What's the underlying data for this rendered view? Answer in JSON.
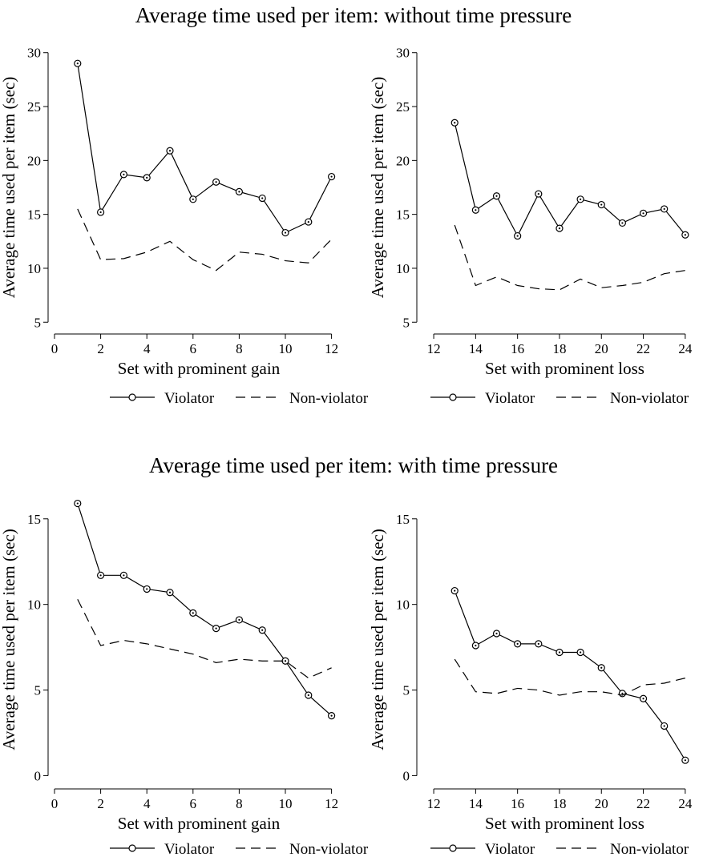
{
  "sections": [
    {
      "title": "Average time used per item: without time pressure"
    },
    {
      "title": "Average time used per item: with time pressure"
    }
  ],
  "chart_data": [
    {
      "type": "line",
      "xlabel": "Set with prominent gain",
      "ylabel": "Average time used per item (sec)",
      "xlim": [
        0,
        12.5
      ],
      "ylim": [
        4.5,
        30.5
      ],
      "xticks": [
        0,
        2,
        4,
        6,
        8,
        10,
        12
      ],
      "yticks": [
        5,
        10,
        15,
        20,
        25,
        30
      ],
      "x": [
        1,
        2,
        3,
        4,
        5,
        6,
        7,
        8,
        9,
        10,
        11,
        12
      ],
      "series": [
        {
          "name": "Violator",
          "style": "solid-circle",
          "values": [
            29.0,
            15.2,
            18.7,
            18.4,
            20.9,
            16.4,
            18.0,
            17.1,
            16.5,
            13.3,
            14.3,
            18.5
          ]
        },
        {
          "name": "Non-violator",
          "style": "dashed",
          "values": [
            15.5,
            10.8,
            10.9,
            11.5,
            12.5,
            10.8,
            9.8,
            11.5,
            11.3,
            10.7,
            10.5,
            12.7
          ]
        }
      ],
      "legend": "bottom",
      "grid": false
    },
    {
      "type": "line",
      "xlabel": "Set with prominent loss",
      "ylabel": "Average time used per item (sec)",
      "xlim": [
        11.5,
        25
      ],
      "ylim": [
        4.5,
        30.5
      ],
      "xticks": [
        12,
        14,
        16,
        18,
        20,
        22,
        24
      ],
      "yticks": [
        5,
        10,
        15,
        20,
        25,
        30
      ],
      "x": [
        13,
        14,
        15,
        16,
        17,
        18,
        19,
        20,
        21,
        22,
        23,
        24
      ],
      "series": [
        {
          "name": "Violator",
          "style": "solid-circle",
          "values": [
            23.5,
            15.4,
            16.7,
            13.0,
            16.9,
            13.7,
            16.4,
            15.9,
            14.2,
            15.1,
            15.5,
            13.1
          ]
        },
        {
          "name": "Non-violator",
          "style": "dashed",
          "values": [
            14.0,
            8.4,
            9.2,
            8.4,
            8.1,
            8.0,
            9.0,
            8.2,
            8.4,
            8.7,
            9.5,
            9.8
          ]
        }
      ],
      "legend": "bottom",
      "grid": false
    },
    {
      "type": "line",
      "xlabel": "Set with prominent gain",
      "ylabel": "Average time used per item (sec)",
      "xlim": [
        0,
        12.5
      ],
      "ylim": [
        -0.4,
        16.3
      ],
      "xticks": [
        0,
        2,
        4,
        6,
        8,
        10,
        12
      ],
      "yticks": [
        0,
        5,
        10,
        15
      ],
      "x": [
        1,
        2,
        3,
        4,
        5,
        6,
        7,
        8,
        9,
        10,
        11,
        12
      ],
      "series": [
        {
          "name": "Violator",
          "style": "solid-circle",
          "values": [
            15.9,
            11.7,
            11.7,
            10.9,
            10.7,
            9.5,
            8.6,
            9.1,
            8.5,
            6.7,
            4.7,
            3.5
          ]
        },
        {
          "name": "Non-violator",
          "style": "dashed",
          "values": [
            10.3,
            7.6,
            7.9,
            7.7,
            7.4,
            7.1,
            6.6,
            6.8,
            6.7,
            6.7,
            5.7,
            6.3
          ]
        }
      ],
      "legend": "bottom",
      "grid": false
    },
    {
      "type": "line",
      "xlabel": "Set with prominent loss",
      "ylabel": "Average time used per item (sec)",
      "xlim": [
        11.5,
        25
      ],
      "ylim": [
        -0.4,
        16.3
      ],
      "xticks": [
        12,
        14,
        16,
        18,
        20,
        22,
        24
      ],
      "yticks": [
        0,
        5,
        10,
        15
      ],
      "x": [
        13,
        14,
        15,
        16,
        17,
        18,
        19,
        20,
        21,
        22,
        23,
        24
      ],
      "series": [
        {
          "name": "Violator",
          "style": "solid-circle",
          "values": [
            10.8,
            7.6,
            8.3,
            7.7,
            7.7,
            7.2,
            7.2,
            6.3,
            4.8,
            4.5,
            2.9,
            0.9
          ]
        },
        {
          "name": "Non-violator",
          "style": "dashed",
          "values": [
            6.8,
            4.9,
            4.8,
            5.1,
            5.0,
            4.7,
            4.9,
            4.9,
            4.7,
            5.3,
            5.4,
            5.7
          ]
        }
      ],
      "legend": "bottom",
      "grid": false
    }
  ]
}
